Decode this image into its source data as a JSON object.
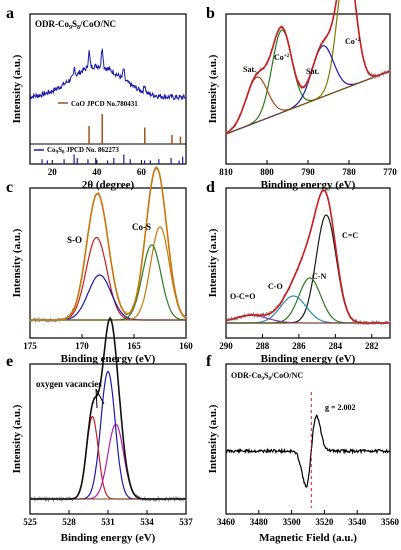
{
  "figure": {
    "panels": [
      {
        "letter": "a",
        "title": "ODR-Co",
        "sub": "9",
        "mid": "S",
        "sub2": "8",
        "tail": "/CoO/NC"
      },
      {
        "letter": "b"
      },
      {
        "letter": "c"
      },
      {
        "letter": "d"
      },
      {
        "letter": "e"
      },
      {
        "letter": "f",
        "title": "ODR-Co",
        "sub": "9",
        "mid": "S",
        "sub2": "8",
        "tail": "/CoO/NC"
      }
    ]
  },
  "chart_data": [
    {
      "panel": "a",
      "type": "line",
      "xlabel": "2θ (degree)",
      "ylabel": "Intensity (a.u.)",
      "xlim": [
        10,
        80
      ],
      "xticks": [
        20,
        40,
        60
      ],
      "series": [
        {
          "name": "ODR-Co9S8/CoO/NC",
          "color": "#1a1aa6"
        }
      ],
      "references": [
        {
          "name": "CoO JPCD No.780431",
          "color": "#a0521b",
          "positions": [
            36.5,
            42.4,
            61.5,
            73.7,
            77.5
          ],
          "heights": [
            0.6,
            1.0,
            0.55,
            0.3,
            0.25
          ]
        },
        {
          "name": "Co9S8 JPCD No. 862273",
          "color": "#1a1aa6",
          "positions": [
            15.4,
            17.8,
            25.3,
            29.8,
            31.2,
            36.0,
            39.5,
            44.8,
            47.6,
            52.1,
            55.0,
            61.4,
            64.0,
            67.8,
            73.3,
            76.9,
            78.5
          ],
          "heights": [
            0.4,
            0.3,
            0.4,
            0.8,
            0.5,
            0.4,
            0.5,
            0.3,
            0.5,
            0.8,
            0.4,
            0.3,
            0.3,
            0.4,
            0.5,
            0.3,
            0.6
          ]
        }
      ],
      "legend": [
        {
          "text": "CoO JPCD No.780431"
        },
        {
          "text": "Co",
          "sub": "9",
          "mid": "S",
          "sub2": "8",
          "tail": " JPCD No. 862273"
        }
      ]
    },
    {
      "panel": "b",
      "type": "line",
      "xlabel": "Binding energy (eV)",
      "ylabel": "Intensity (a.u.)",
      "xlim": [
        810,
        770
      ],
      "xticks": [
        810,
        800,
        790,
        780,
        770
      ],
      "annotations": [
        {
          "text": "Sat.",
          "x": 802
        },
        {
          "text": "Co",
          "sup": "+2",
          "x": 796
        },
        {
          "text": "Sat.",
          "x": 786
        },
        {
          "text": "Co",
          "sup": "+2",
          "x": 780
        }
      ],
      "peaks": [
        {
          "center": 780.6,
          "height": 0.86,
          "width": 2.2,
          "color": "#7a7a00"
        },
        {
          "center": 796.4,
          "height": 0.55,
          "width": 2.4,
          "color": "#2b7a1d"
        },
        {
          "center": 786.4,
          "height": 0.34,
          "width": 2.6,
          "color": "#1a1aa6"
        },
        {
          "center": 802.5,
          "height": 0.3,
          "width": 2.6,
          "color": "#a0521b"
        }
      ]
    },
    {
      "panel": "c",
      "type": "line",
      "xlabel": "Binding energy (eV)",
      "ylabel": "Intensity (a.u.)",
      "xlim": [
        175,
        160
      ],
      "xticks": [
        175,
        170,
        165,
        160
      ],
      "annotations": [
        {
          "text": "S-O",
          "x": 168.5
        },
        {
          "text": "Co-S",
          "x": 162.5
        }
      ],
      "peaks": [
        {
          "center": 168.6,
          "height": 0.55,
          "width": 1.0,
          "color": "#c81e1e"
        },
        {
          "center": 168.3,
          "height": 0.3,
          "width": 1.1,
          "color": "#1a1aa6"
        },
        {
          "center": 162.5,
          "height": 0.62,
          "width": 0.9,
          "color": "#c8780a"
        },
        {
          "center": 163.3,
          "height": 0.5,
          "width": 0.9,
          "color": "#2b7a1d"
        }
      ]
    },
    {
      "panel": "d",
      "type": "line",
      "xlabel": "Binding energy (eV)",
      "ylabel": "Intensity (a.u.)",
      "xlim": [
        290,
        281
      ],
      "xticks": [
        290,
        288,
        286,
        284,
        282
      ],
      "annotations": [
        {
          "text": "C=C",
          "x": 283.8
        },
        {
          "text": "C-N",
          "x": 285.2
        },
        {
          "text": "C-O",
          "x": 286.8
        },
        {
          "text": "O-C=O",
          "x": 288.5
        }
      ],
      "peaks": [
        {
          "center": 284.5,
          "height": 0.72,
          "width": 0.55,
          "color": "#1a1a1a"
        },
        {
          "center": 285.4,
          "height": 0.3,
          "width": 0.6,
          "color": "#2b7a1d"
        },
        {
          "center": 286.3,
          "height": 0.18,
          "width": 0.7,
          "color": "#2b8ab0"
        },
        {
          "center": 288.6,
          "height": 0.05,
          "width": 0.9,
          "color": "#7a3aa0"
        }
      ]
    },
    {
      "panel": "e",
      "type": "line",
      "xlabel": "Binding energy (eV)",
      "ylabel": "Intensity (a.u.)",
      "xlim": [
        525,
        537
      ],
      "xticks": [
        525,
        528,
        531,
        534,
        537
      ],
      "annotations": [
        {
          "text": "oxygen vacancies",
          "x": 530
        }
      ],
      "peaks": [
        {
          "center": 531.0,
          "height": 0.85,
          "width": 0.55,
          "color": "#1a1aa6"
        },
        {
          "center": 529.8,
          "height": 0.55,
          "width": 0.45,
          "color": "#c81e1e"
        },
        {
          "center": 531.6,
          "height": 0.5,
          "width": 0.6,
          "color": "#b020b0"
        }
      ]
    },
    {
      "panel": "f",
      "type": "line",
      "xlabel": "Magnetic Field (a.u.)",
      "ylabel": "Intensity (a.u.)",
      "xlim": [
        3460,
        3560
      ],
      "xticks": [
        3460,
        3480,
        3500,
        3520,
        3540,
        3560
      ],
      "annotations": [
        {
          "text": "g = 2.002",
          "x": 3521
        }
      ],
      "signal_center": 3512,
      "dashed_line_x": 3512
    }
  ]
}
